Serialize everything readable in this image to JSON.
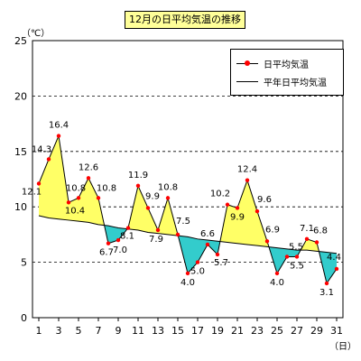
{
  "chart_data": {
    "type": "line",
    "title": "12月の日平均気温の推移",
    "y_unit": "（℃）",
    "x_unit": "（日）",
    "ylim": [
      0,
      25
    ],
    "yticks": [
      0,
      5,
      10,
      15,
      20,
      25
    ],
    "xticks": [
      1,
      3,
      5,
      7,
      9,
      11,
      13,
      15,
      17,
      19,
      21,
      23,
      25,
      27,
      29,
      31
    ],
    "grid": "dashed at 5, 10, 15, 20",
    "legend_placement": "top-right",
    "x": [
      1,
      2,
      3,
      4,
      5,
      6,
      7,
      8,
      9,
      10,
      11,
      12,
      13,
      14,
      15,
      16,
      17,
      18,
      19,
      20,
      21,
      22,
      23,
      24,
      25,
      26,
      27,
      28,
      29,
      30,
      31
    ],
    "series": [
      {
        "name": "日平均気温",
        "color": "#ff0000",
        "values": [
          12.1,
          14.3,
          16.4,
          10.4,
          10.8,
          12.6,
          10.8,
          6.7,
          7.0,
          8.1,
          11.9,
          9.9,
          7.9,
          10.8,
          7.5,
          4.0,
          5.0,
          6.6,
          5.7,
          10.2,
          9.9,
          12.4,
          9.6,
          6.9,
          4.0,
          5.5,
          5.5,
          7.1,
          6.8,
          3.1,
          4.4
        ]
      },
      {
        "name": "平年日平均気温",
        "color": "#000000",
        "values": [
          9.2,
          9.0,
          8.9,
          8.8,
          8.7,
          8.6,
          8.4,
          8.3,
          8.1,
          8.0,
          7.9,
          7.7,
          7.6,
          7.5,
          7.4,
          7.3,
          7.1,
          7.0,
          6.9,
          6.8,
          6.7,
          6.6,
          6.5,
          6.4,
          6.3,
          6.2,
          6.1,
          6.1,
          6.0,
          5.9,
          5.8
        ]
      }
    ],
    "data_labels": [
      {
        "day": 1,
        "text": "12.1"
      },
      {
        "day": 2,
        "text": "14.3"
      },
      {
        "day": 3,
        "text": "16.4"
      },
      {
        "day": 4,
        "text": "10.4"
      },
      {
        "day": 5,
        "text": "10.8"
      },
      {
        "day": 6,
        "text": "12.6"
      },
      {
        "day": 7,
        "text": "10.8"
      },
      {
        "day": 8,
        "text": "6.7"
      },
      {
        "day": 9,
        "text": "7.0"
      },
      {
        "day": 10,
        "text": "8.1"
      },
      {
        "day": 11,
        "text": "11.9"
      },
      {
        "day": 12,
        "text": "9.9"
      },
      {
        "day": 13,
        "text": "7.9"
      },
      {
        "day": 14,
        "text": "10.8"
      },
      {
        "day": 15,
        "text": "7.5"
      },
      {
        "day": 16,
        "text": "4.0"
      },
      {
        "day": 17,
        "text": "5.0"
      },
      {
        "day": 18,
        "text": "6.6"
      },
      {
        "day": 19,
        "text": "5.7"
      },
      {
        "day": 20,
        "text": "10.2"
      },
      {
        "day": 21,
        "text": "9.9"
      },
      {
        "day": 22,
        "text": "12.4"
      },
      {
        "day": 23,
        "text": "9.6"
      },
      {
        "day": 24,
        "text": "6.9"
      },
      {
        "day": 25,
        "text": "4.0"
      },
      {
        "day": 26,
        "text": "5.5"
      },
      {
        "day": 27,
        "text": "5.5"
      },
      {
        "day": 28,
        "text": "7.1"
      },
      {
        "day": 29,
        "text": "6.8"
      },
      {
        "day": 30,
        "text": "3.1"
      },
      {
        "day": 31,
        "text": "4.4"
      }
    ],
    "fill_colors": {
      "above": "#ffff66",
      "below": "#33cccc"
    }
  }
}
